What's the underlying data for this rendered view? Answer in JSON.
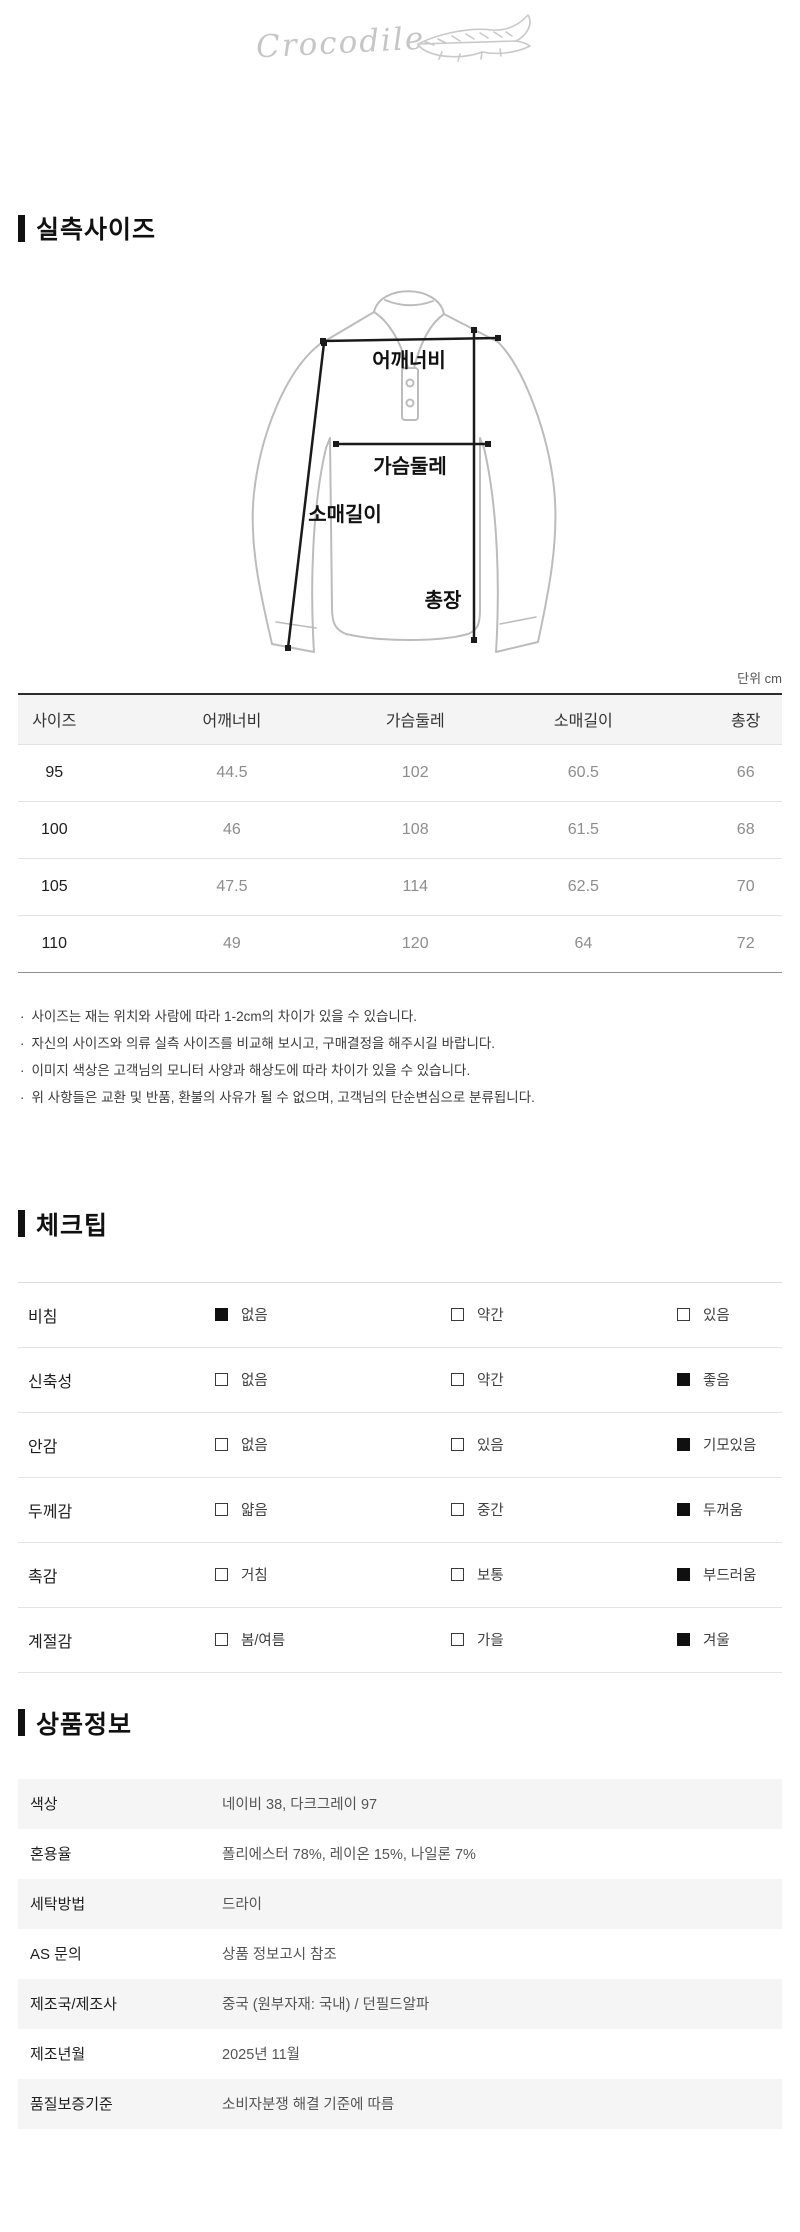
{
  "logo": {
    "brand": "Crocodile"
  },
  "section_size": {
    "title": "실측사이즈",
    "unit_label": "단위 cm",
    "diagram_labels": {
      "shoulder": "어깨너비",
      "chest": "가슴둘레",
      "sleeve": "소매길이",
      "length": "총장"
    },
    "table": {
      "headers": [
        "사이즈",
        "어깨너비",
        "가슴둘레",
        "소매길이",
        "총장"
      ],
      "rows": [
        [
          "95",
          "44.5",
          "102",
          "60.5",
          "66"
        ],
        [
          "100",
          "46",
          "108",
          "61.5",
          "68"
        ],
        [
          "105",
          "47.5",
          "114",
          "62.5",
          "70"
        ],
        [
          "110",
          "49",
          "120",
          "64",
          "72"
        ]
      ]
    },
    "notes": [
      "사이즈는 재는 위치와 사람에 따라 1-2cm의 차이가 있을 수 있습니다.",
      "자신의 사이즈와 의류 실측 사이즈를 비교해 보시고, 구매결정을 해주시길 바랍니다.",
      "이미지 색상은 고객님의 모니터 사양과 해상도에 따라 차이가 있을 수 있습니다.",
      "위 사항들은 교환 및 반품, 환불의 사유가 될 수 없으며, 고객님의 단순변심으로 분류됩니다."
    ]
  },
  "section_checktips": {
    "title": "체크팁",
    "rows": [
      {
        "label": "비침",
        "options": [
          {
            "text": "없음",
            "checked": true
          },
          {
            "text": "약간",
            "checked": false
          },
          {
            "text": "있음",
            "checked": false
          }
        ]
      },
      {
        "label": "신축성",
        "options": [
          {
            "text": "없음",
            "checked": false
          },
          {
            "text": "약간",
            "checked": false
          },
          {
            "text": "좋음",
            "checked": true
          }
        ]
      },
      {
        "label": "안감",
        "options": [
          {
            "text": "없음",
            "checked": false
          },
          {
            "text": "있음",
            "checked": false
          },
          {
            "text": "기모있음",
            "checked": true
          }
        ]
      },
      {
        "label": "두께감",
        "options": [
          {
            "text": "얇음",
            "checked": false
          },
          {
            "text": "중간",
            "checked": false
          },
          {
            "text": "두꺼움",
            "checked": true
          }
        ]
      },
      {
        "label": "촉감",
        "options": [
          {
            "text": "거침",
            "checked": false
          },
          {
            "text": "보통",
            "checked": false
          },
          {
            "text": "부드러움",
            "checked": true
          }
        ]
      },
      {
        "label": "계절감",
        "options": [
          {
            "text": "봄/여름",
            "checked": false
          },
          {
            "text": "가을",
            "checked": false
          },
          {
            "text": "겨울",
            "checked": true
          }
        ]
      }
    ]
  },
  "section_product": {
    "title": "상품정보",
    "rows": [
      {
        "label": "색상",
        "value": "네이비 38, 다크그레이 97"
      },
      {
        "label": "혼용율",
        "value": "폴리에스터 78%, 레이온 15%, 나일론 7%"
      },
      {
        "label": "세탁방법",
        "value": "드라이"
      },
      {
        "label": "AS 문의",
        "value": "상품 정보고시 참조"
      },
      {
        "label": "제조국/제조사",
        "value": "중국 (원부자재: 국내) / 던필드알파"
      },
      {
        "label": "제조년월",
        "value": "2025년 11월"
      },
      {
        "label": "품질보증기준",
        "value": "소비자분쟁 해결 기준에 따름"
      }
    ]
  },
  "colors": {
    "accent_black": "#111111",
    "table_header_bg": "#f4f4f4",
    "alt_row_bg": "#f5f5f5",
    "muted_value": "#8d8d8d",
    "logo_gray": "#c6c6c6",
    "outline_gray": "#bcbcbc"
  }
}
